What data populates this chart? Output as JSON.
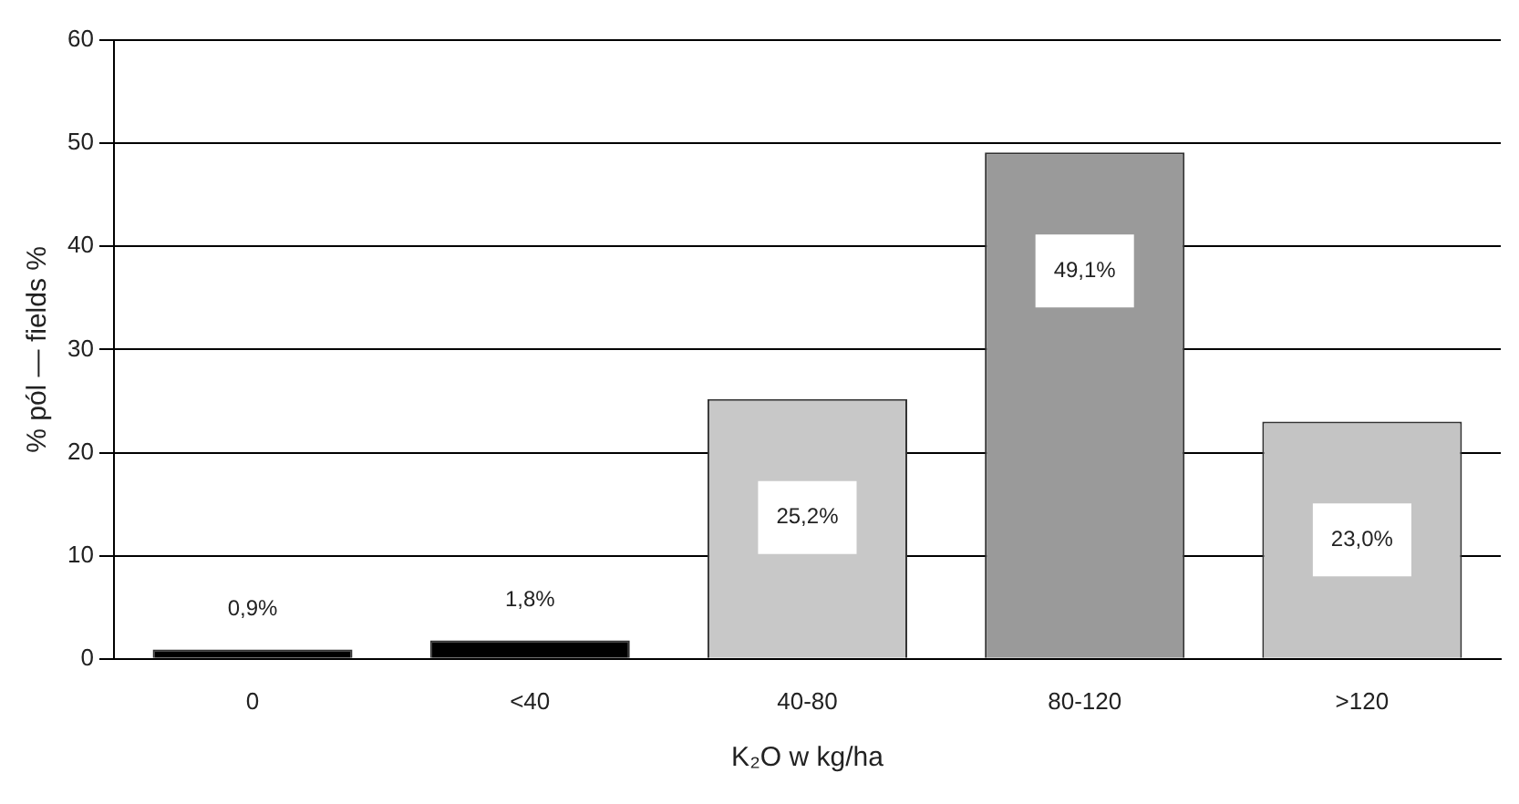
{
  "chart_data": {
    "type": "bar",
    "xlabel": "K₂O w kg/ha",
    "ylabel": "% pól — fields %",
    "categories": [
      "0",
      "<40",
      "40-80",
      "80-120",
      ">120"
    ],
    "values": [
      0.9,
      1.8,
      25.2,
      49.1,
      23.0
    ],
    "colors": [
      "#000000",
      "#000000",
      "#c8c8c8",
      "#9a9a9a",
      "#c4c4c4"
    ],
    "value_labels": [
      "0,9%",
      "1,8%",
      "25,2%",
      "49,1%",
      "23,0%"
    ],
    "ylim": [
      0,
      60
    ],
    "yticks": [
      0,
      10,
      20,
      30,
      40,
      50,
      60
    ],
    "grid": "y"
  }
}
